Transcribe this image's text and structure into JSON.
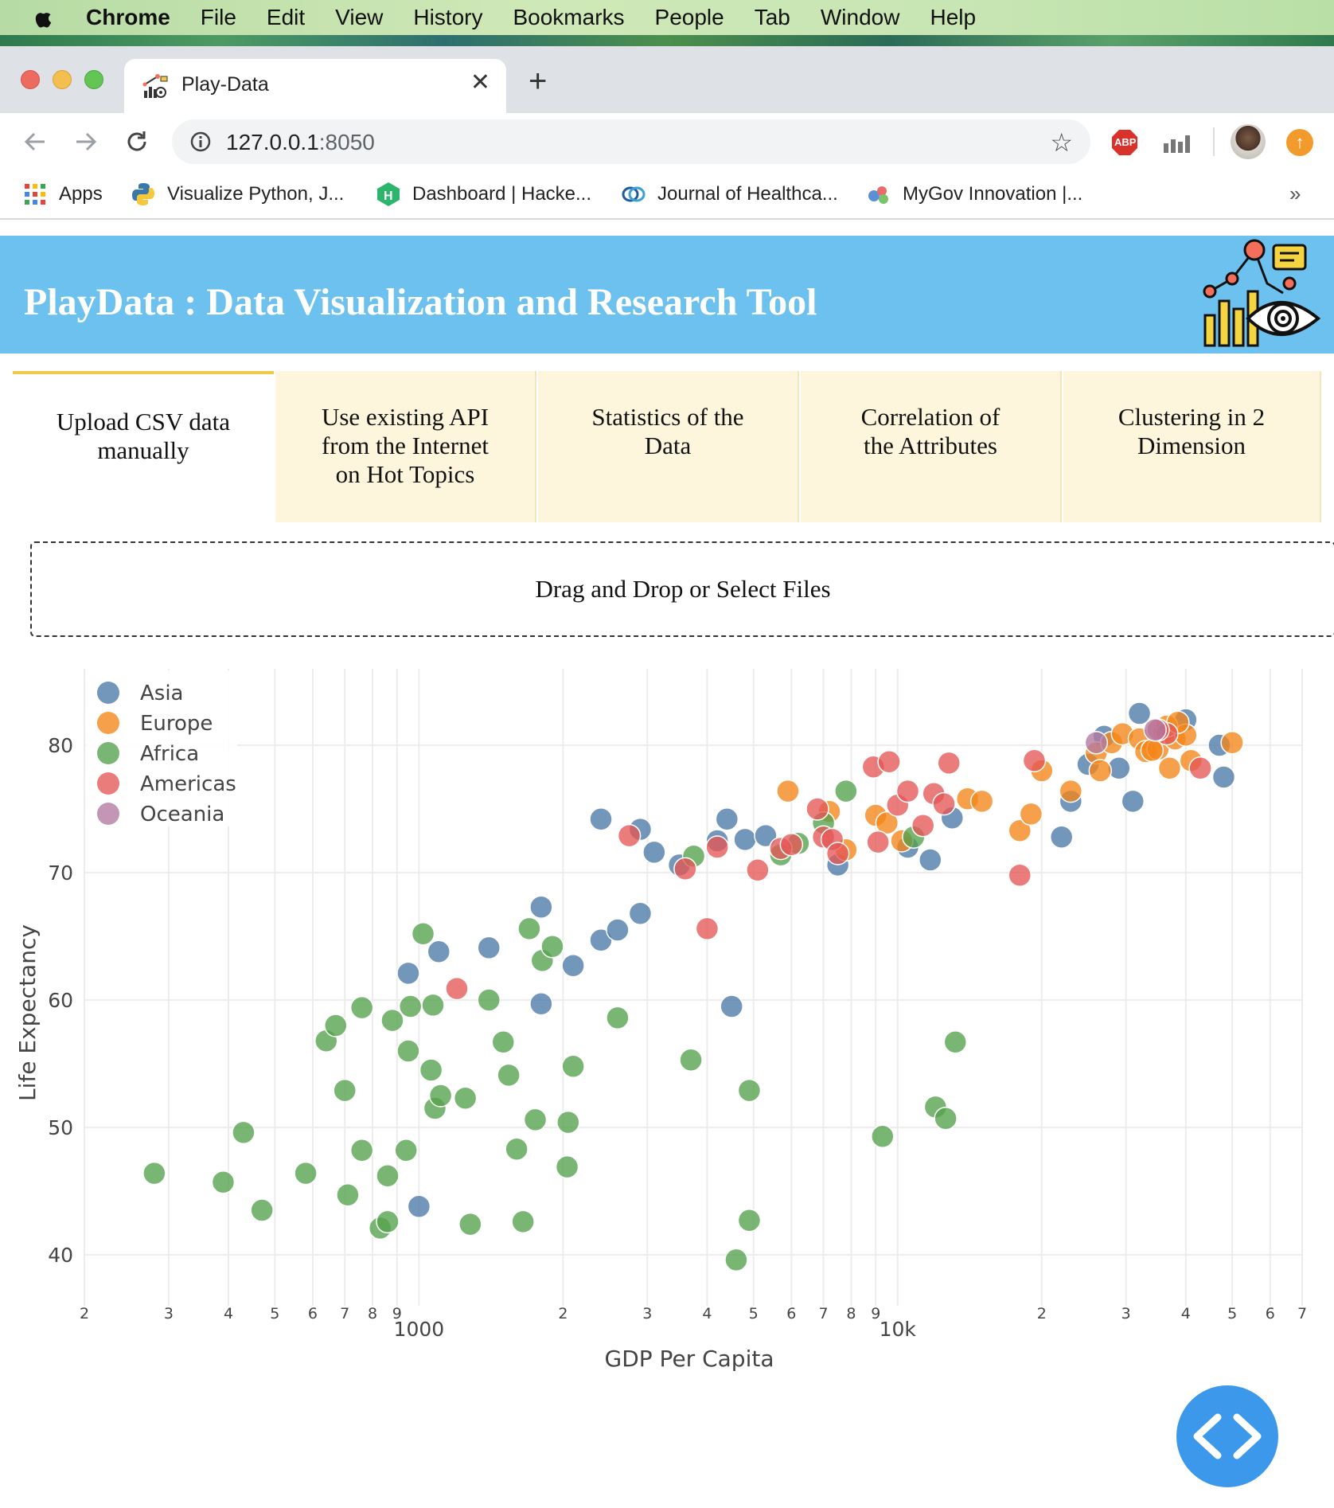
{
  "menubar": {
    "app": "Chrome",
    "items": [
      "File",
      "Edit",
      "View",
      "History",
      "Bookmarks",
      "People",
      "Tab",
      "Window",
      "Help"
    ]
  },
  "browser": {
    "tab_title": "Play-Data",
    "url_host": "127.0.0.1",
    "url_port": ":8050",
    "bookmarks": [
      "Apps",
      "Visualize Python, J...",
      "Dashboard | Hacke...",
      "Journal of Healthca...",
      "MyGov Innovation |..."
    ],
    "more": "»",
    "ext_abp": "ABP"
  },
  "page": {
    "title": "PlayData : Data Visualization and Research Tool",
    "tabs": [
      {
        "label": "Upload CSV data manually",
        "active": true
      },
      {
        "label": "Use existing API from the Internet on Hot Topics",
        "active": false
      },
      {
        "label": "Statistics of the Data",
        "active": false
      },
      {
        "label": "Correlation of the Attributes",
        "active": false
      },
      {
        "label": "Clustering in 2 Dimension",
        "active": false
      }
    ],
    "upload_text": "Drag and Drop or Select Files"
  },
  "colors": {
    "header": "#6cc1ef",
    "asia": "#4c78a8",
    "europe": "#f58518",
    "africa": "#54a24b",
    "americas": "#e45756",
    "oceania": "#b279a2"
  },
  "chart_data": {
    "type": "scatter",
    "xlabel": "GDP Per Capita",
    "ylabel": "Life Expectancy",
    "x_scale": "log",
    "xlim": [
      200,
      70000
    ],
    "ylim": [
      36,
      86
    ],
    "y_ticks": [
      40,
      50,
      60,
      70,
      80
    ],
    "x_ticks": [
      {
        "v": 200,
        "t": "2"
      },
      {
        "v": 300,
        "t": "3"
      },
      {
        "v": 400,
        "t": "4"
      },
      {
        "v": 500,
        "t": "5"
      },
      {
        "v": 600,
        "t": "6"
      },
      {
        "v": 700,
        "t": "7"
      },
      {
        "v": 800,
        "t": "8"
      },
      {
        "v": 900,
        "t": "9"
      },
      {
        "v": 1000,
        "t": "1000",
        "major": true
      },
      {
        "v": 2000,
        "t": "2"
      },
      {
        "v": 3000,
        "t": "3"
      },
      {
        "v": 4000,
        "t": "4"
      },
      {
        "v": 5000,
        "t": "5"
      },
      {
        "v": 6000,
        "t": "6"
      },
      {
        "v": 7000,
        "t": "7"
      },
      {
        "v": 8000,
        "t": "8"
      },
      {
        "v": 9000,
        "t": "9"
      },
      {
        "v": 10000,
        "t": "10k",
        "major": true
      },
      {
        "v": 20000,
        "t": "2"
      },
      {
        "v": 30000,
        "t": "3"
      },
      {
        "v": 40000,
        "t": "4"
      },
      {
        "v": 50000,
        "t": "5"
      },
      {
        "v": 60000,
        "t": "6"
      },
      {
        "v": 70000,
        "t": "7"
      }
    ],
    "legend_position": "top-left",
    "series": [
      {
        "name": "Asia",
        "color": "#4c78a8",
        "points": [
          [
            2400,
            74.2
          ],
          [
            2900,
            73.4
          ],
          [
            3100,
            71.6
          ],
          [
            3500,
            70.6
          ],
          [
            4200,
            72.5
          ],
          [
            4400,
            74.2
          ],
          [
            4800,
            72.6
          ],
          [
            5300,
            72.9
          ],
          [
            7500,
            70.6
          ],
          [
            10500,
            72.0
          ],
          [
            11700,
            71.0
          ],
          [
            13000,
            74.3
          ],
          [
            22000,
            72.8
          ],
          [
            23000,
            75.6
          ],
          [
            25000,
            78.5
          ],
          [
            27000,
            80.7
          ],
          [
            29000,
            78.2
          ],
          [
            31000,
            75.6
          ],
          [
            32000,
            82.5
          ],
          [
            40000,
            82.0
          ],
          [
            47000,
            80.0
          ],
          [
            48000,
            77.5
          ],
          [
            1800,
            67.3
          ],
          [
            2100,
            62.7
          ],
          [
            2400,
            64.7
          ],
          [
            2600,
            65.5
          ],
          [
            2900,
            66.8
          ],
          [
            950,
            62.1
          ],
          [
            1100,
            63.8
          ],
          [
            1400,
            64.1
          ],
          [
            1800,
            59.7
          ],
          [
            4500,
            59.5
          ],
          [
            1000,
            43.8
          ]
        ]
      },
      {
        "name": "Europe",
        "color": "#f58518",
        "points": [
          [
            5900,
            76.4
          ],
          [
            7200,
            74.8
          ],
          [
            7800,
            71.8
          ],
          [
            9000,
            74.5
          ],
          [
            9500,
            73.9
          ],
          [
            10200,
            72.5
          ],
          [
            14000,
            75.8
          ],
          [
            15000,
            75.6
          ],
          [
            18000,
            73.3
          ],
          [
            19000,
            74.6
          ],
          [
            20000,
            78.0
          ],
          [
            23000,
            76.4
          ],
          [
            26000,
            79.4
          ],
          [
            26500,
            78.0
          ],
          [
            28000,
            80.2
          ],
          [
            29500,
            80.9
          ],
          [
            32000,
            80.5
          ],
          [
            33000,
            79.5
          ],
          [
            35000,
            79.7
          ],
          [
            36000,
            81.0
          ],
          [
            37000,
            78.2
          ],
          [
            38000,
            80.5
          ],
          [
            40000,
            80.8
          ],
          [
            41000,
            78.8
          ],
          [
            50000,
            80.2
          ],
          [
            36500,
            81.5
          ],
          [
            38500,
            81.8
          ],
          [
            34000,
            79.6
          ]
        ]
      },
      {
        "name": "Africa",
        "color": "#54a24b",
        "points": [
          [
            280,
            46.4
          ],
          [
            390,
            45.7
          ],
          [
            430,
            49.6
          ],
          [
            470,
            43.5
          ],
          [
            580,
            46.4
          ],
          [
            640,
            56.8
          ],
          [
            670,
            58.0
          ],
          [
            700,
            52.9
          ],
          [
            710,
            44.7
          ],
          [
            760,
            59.4
          ],
          [
            760,
            48.2
          ],
          [
            830,
            42.1
          ],
          [
            860,
            42.6
          ],
          [
            860,
            46.2
          ],
          [
            880,
            58.4
          ],
          [
            940,
            48.2
          ],
          [
            950,
            56.0
          ],
          [
            960,
            59.5
          ],
          [
            1020,
            65.2
          ],
          [
            1070,
            59.6
          ],
          [
            1060,
            54.5
          ],
          [
            1080,
            51.5
          ],
          [
            1110,
            52.5
          ],
          [
            1250,
            52.3
          ],
          [
            1280,
            42.4
          ],
          [
            1400,
            60.0
          ],
          [
            1500,
            56.7
          ],
          [
            1540,
            54.1
          ],
          [
            1600,
            48.3
          ],
          [
            1650,
            42.6
          ],
          [
            1700,
            65.6
          ],
          [
            1750,
            50.6
          ],
          [
            1810,
            63.1
          ],
          [
            1900,
            64.2
          ],
          [
            2040,
            46.9
          ],
          [
            2050,
            50.4
          ],
          [
            2100,
            54.8
          ],
          [
            2600,
            58.6
          ],
          [
            3700,
            55.3
          ],
          [
            3750,
            71.3
          ],
          [
            4600,
            39.6
          ],
          [
            4900,
            42.7
          ],
          [
            4900,
            52.9
          ],
          [
            5700,
            71.4
          ],
          [
            6200,
            72.3
          ],
          [
            7000,
            73.9
          ],
          [
            7800,
            76.4
          ],
          [
            9300,
            49.3
          ],
          [
            10800,
            72.8
          ],
          [
            12000,
            51.6
          ],
          [
            12600,
            50.7
          ],
          [
            13200,
            56.7
          ]
        ]
      },
      {
        "name": "Americas",
        "color": "#e45756",
        "points": [
          [
            1200,
            60.9
          ],
          [
            2750,
            72.9
          ],
          [
            3600,
            70.3
          ],
          [
            4000,
            65.6
          ],
          [
            4200,
            72.0
          ],
          [
            5100,
            70.2
          ],
          [
            5700,
            71.9
          ],
          [
            6000,
            72.2
          ],
          [
            6800,
            75.0
          ],
          [
            7000,
            72.8
          ],
          [
            7300,
            72.6
          ],
          [
            7500,
            71.5
          ],
          [
            8900,
            78.3
          ],
          [
            9100,
            72.4
          ],
          [
            9600,
            78.7
          ],
          [
            10000,
            75.3
          ],
          [
            10500,
            76.4
          ],
          [
            11300,
            73.7
          ],
          [
            11900,
            76.2
          ],
          [
            12500,
            75.4
          ],
          [
            12800,
            78.6
          ],
          [
            18000,
            69.8
          ],
          [
            19300,
            78.8
          ],
          [
            36500,
            80.9
          ],
          [
            42900,
            78.2
          ],
          [
            35000,
            81.2
          ]
        ]
      },
      {
        "name": "Oceania",
        "color": "#b279a2",
        "points": [
          [
            26000,
            80.2
          ],
          [
            34500,
            81.2
          ]
        ]
      }
    ]
  }
}
